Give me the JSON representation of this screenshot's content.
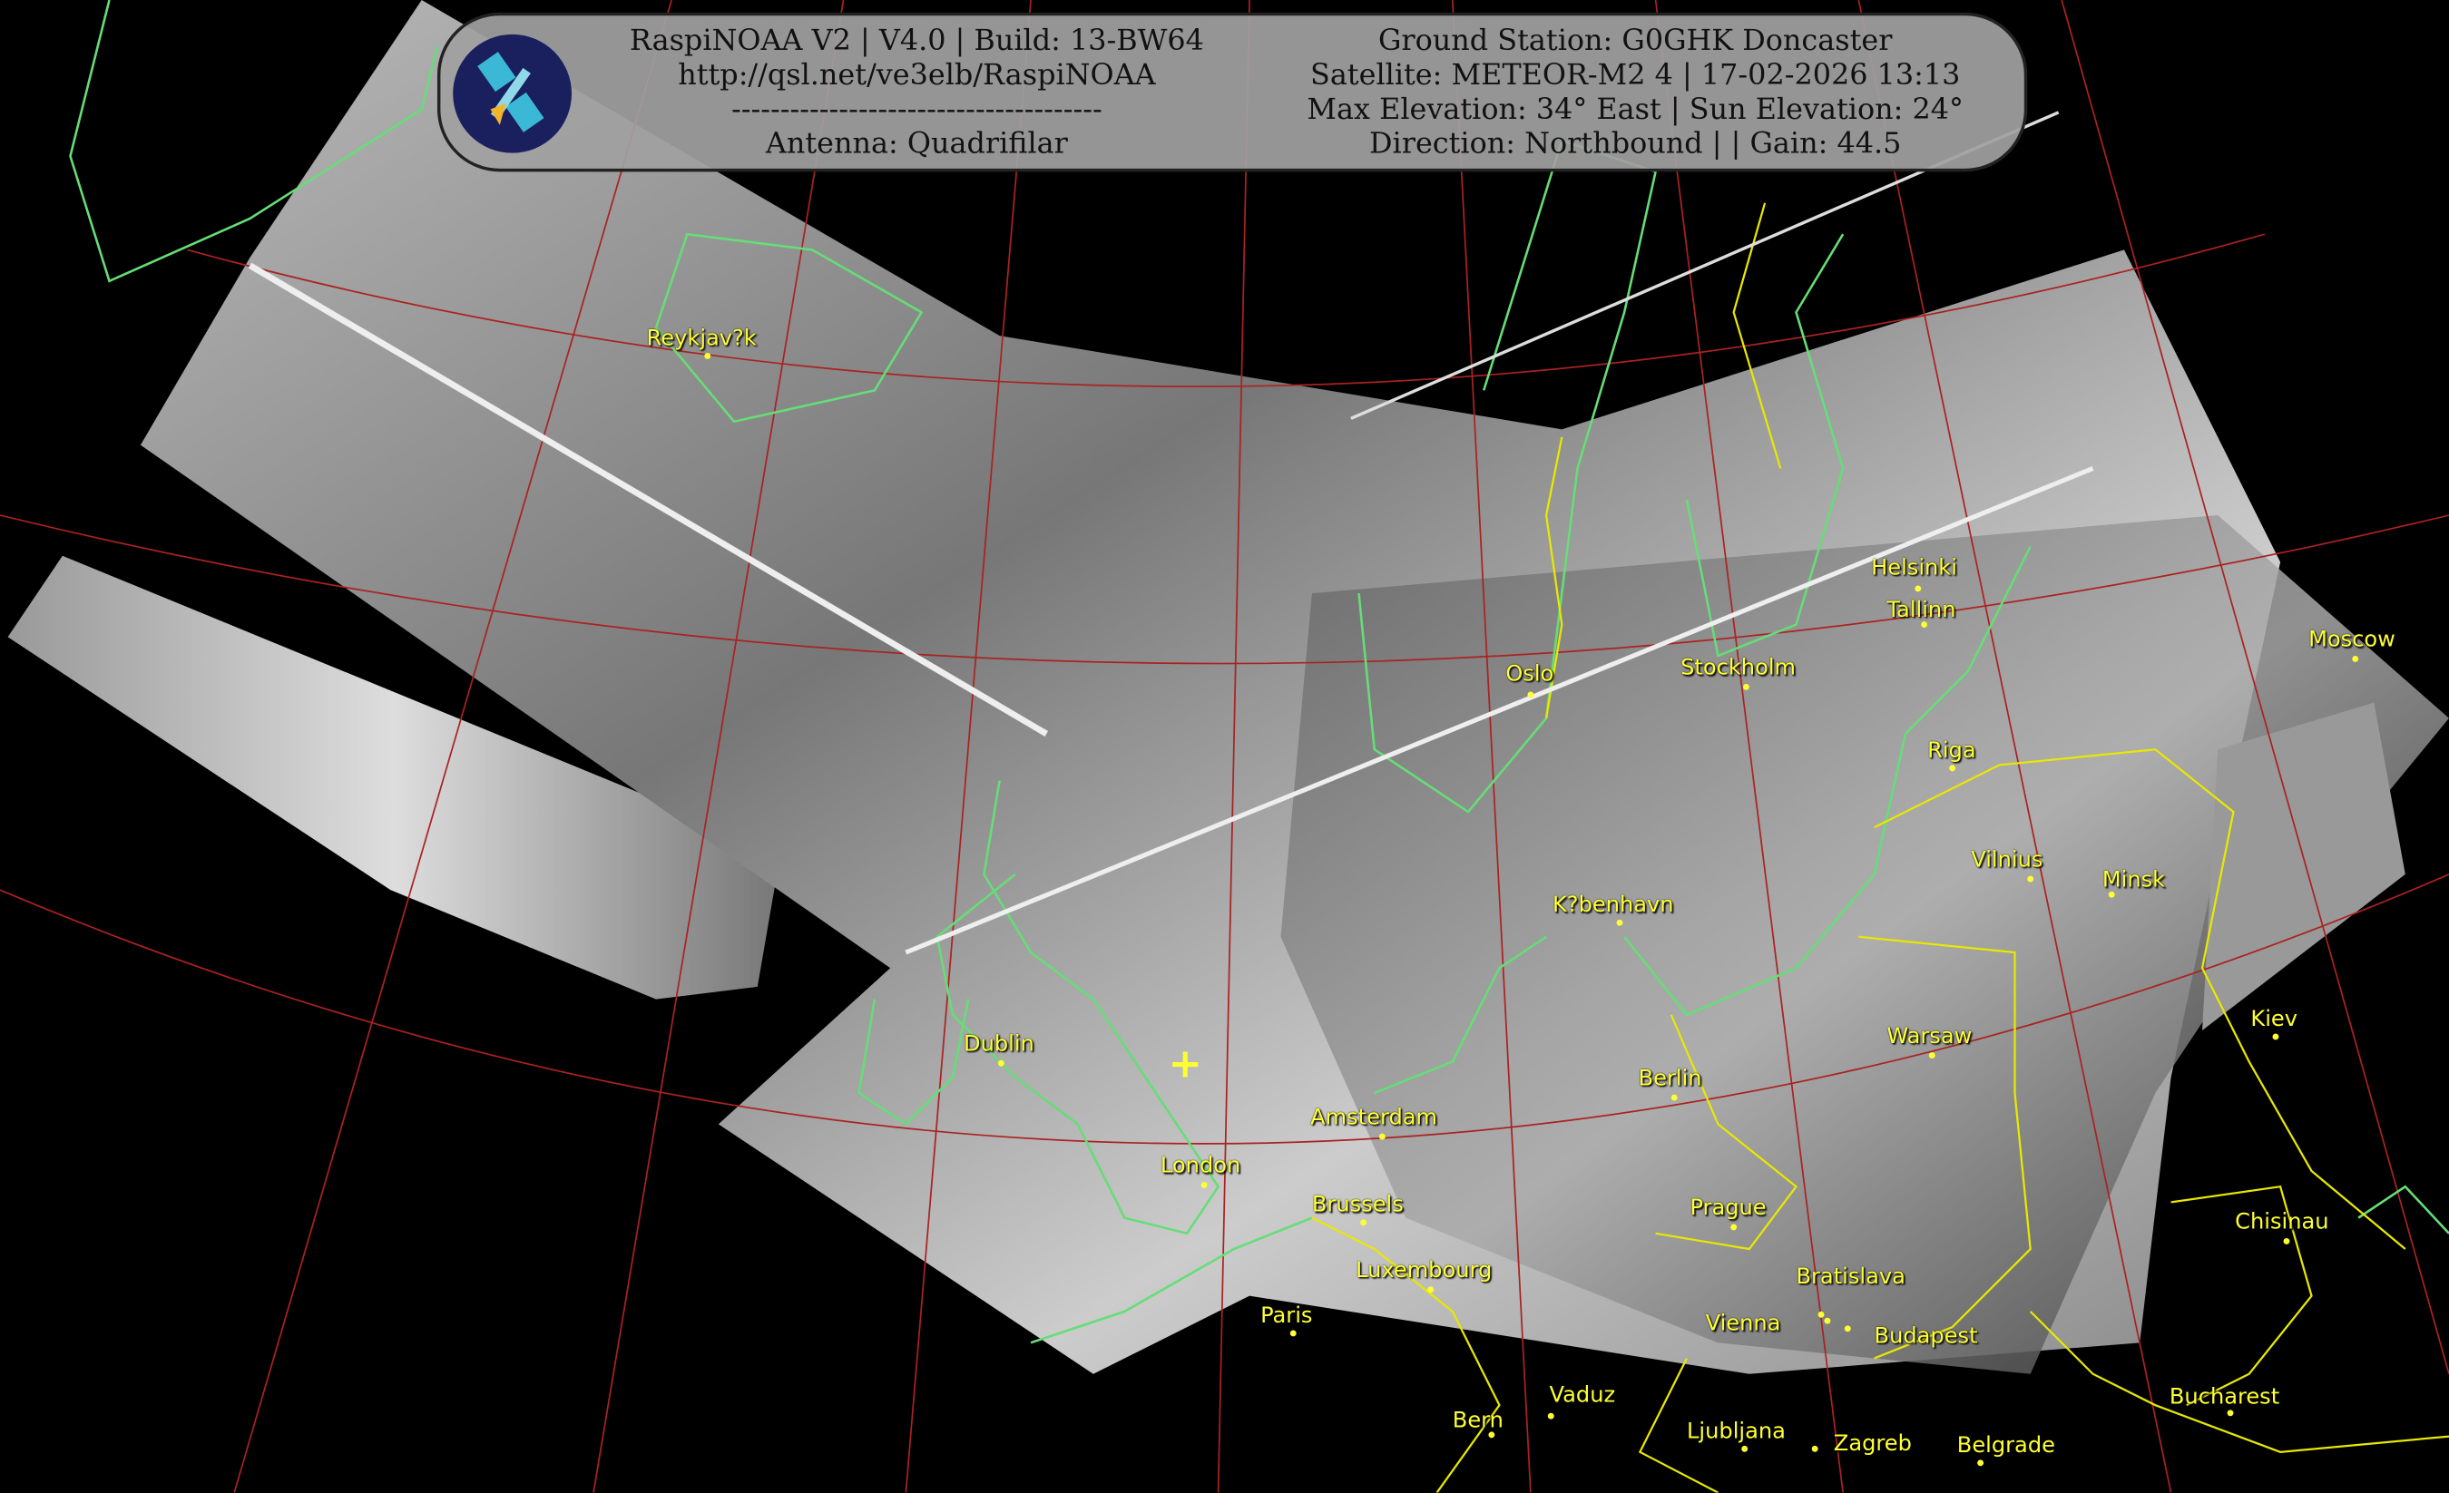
{
  "banner": {
    "left": {
      "line1": "RaspiNOAA V2 | V4.0 | Build: 13-BW64",
      "line2": "http://qsl.net/ve3elb/RaspiNOAA",
      "line3": "--------------------------------------",
      "line4": "Antenna: Quadrifilar"
    },
    "right": {
      "line1": "Ground Station: G0GHK Doncaster",
      "line2": "Satellite: METEOR-M2 4 | 17-02-2026 13:13",
      "line3": "Max Elevation: 34° East | Sun Elevation: 24°",
      "line4": "Direction: Northbound | | Gain: 44.5"
    },
    "logo_icon": "satellite-icon"
  },
  "cities": [
    "Reykjav?k",
    "Oslo",
    "Stockholm",
    "Helsinki",
    "Tallinn",
    "Moscow",
    "Riga",
    "Vilnius",
    "Minsk",
    "K?benhavn",
    "Dublin",
    "Amsterdam",
    "Berlin",
    "Warsaw",
    "Kiev",
    "London",
    "Brussels",
    "Prague",
    "Luxembourg",
    "Chisinau",
    "Paris",
    "Vienna",
    "Bratislava",
    "Budapest",
    "Bern",
    "Vaduz",
    "Ljubljana",
    "Zagreb",
    "Belgrade",
    "Bucharest"
  ],
  "colors": {
    "city_labels": "#ffff33",
    "coastlines": "#66dd77",
    "borders": "#e8e800",
    "graticule": "#aa2222",
    "background": "#000000"
  }
}
